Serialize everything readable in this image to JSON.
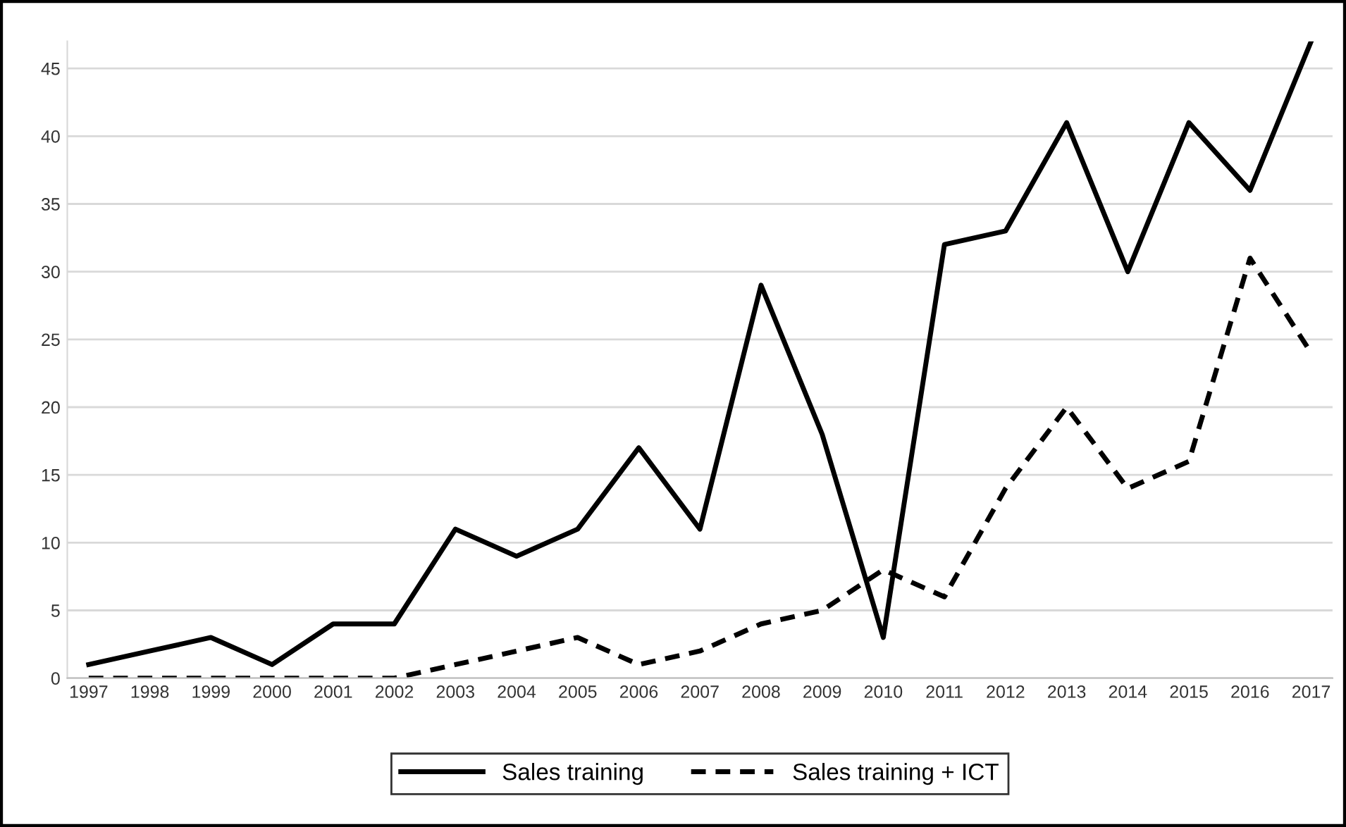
{
  "chart_data": {
    "type": "line",
    "categories": [
      "1997",
      "1998",
      "1999",
      "2000",
      "2001",
      "2002",
      "2003",
      "2004",
      "2005",
      "2006",
      "2007",
      "2008",
      "2009",
      "2010",
      "2011",
      "2012",
      "2013",
      "2014",
      "2015",
      "2016",
      "2017"
    ],
    "series": [
      {
        "name": "Sales training",
        "color": "#000000",
        "line_style": "solid",
        "values": [
          1,
          2,
          3,
          1,
          4,
          4,
          11,
          9,
          11,
          17,
          11,
          29,
          18,
          3,
          32,
          33,
          41,
          30,
          41,
          36,
          47
        ]
      },
      {
        "name": "Sales training + ICT",
        "color": "#000000",
        "line_style": "dashed",
        "values": [
          0,
          0,
          0,
          0,
          0,
          0,
          1,
          2,
          3,
          1,
          2,
          4,
          5,
          8,
          6,
          14,
          20,
          14,
          16,
          31,
          24
        ]
      }
    ],
    "ylim": [
      0,
      47
    ],
    "yticks": [
      0,
      5,
      10,
      15,
      20,
      25,
      30,
      35,
      40,
      45
    ],
    "grid": "y",
    "legend": "bottom",
    "marker": "none"
  }
}
